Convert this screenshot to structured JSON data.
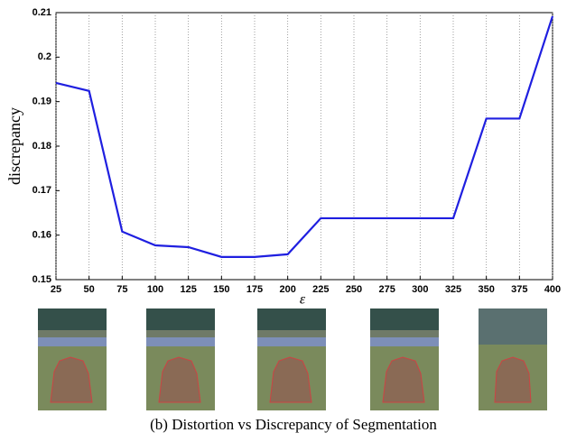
{
  "chart_data": {
    "type": "line",
    "x_label": "ε",
    "y_label": "discrepancy",
    "caption": "(b) Distortion vs Discrepancy of Segmentation",
    "x": [
      25,
      50,
      75,
      100,
      125,
      150,
      175,
      200,
      225,
      250,
      275,
      300,
      325,
      350,
      375,
      400
    ],
    "series": [
      {
        "color": "#1f1fe0",
        "values": [
          0.1942,
          0.1924,
          0.1608,
          0.1577,
          0.1573,
          0.1551,
          0.1551,
          0.1557,
          0.1638,
          0.1638,
          0.1638,
          0.1638,
          0.1638,
          0.1862,
          0.1862,
          0.2092
        ]
      }
    ],
    "xlim": [
      25,
      400
    ],
    "xticks": [
      25,
      50,
      75,
      100,
      125,
      150,
      175,
      200,
      225,
      250,
      275,
      300,
      325,
      350,
      375,
      400
    ],
    "ylim": [
      0.15,
      0.21
    ],
    "yticks": [
      0.15,
      0.16,
      0.17,
      0.18,
      0.19,
      0.2,
      0.21
    ],
    "grid": "x"
  }
}
